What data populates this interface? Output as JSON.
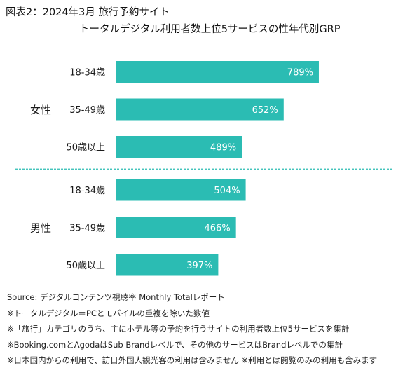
{
  "header": {
    "title_line1": "図表2：2024年3月 旅行予約サイト",
    "title_line2": "トータルデジタル利用者数上位5サービスの性年代別GRP"
  },
  "colors": {
    "bar": "#2bbcb3",
    "bar_label": "#ffffff",
    "divider": "#2bbcb3"
  },
  "chart_data": {
    "type": "bar",
    "orientation": "horizontal",
    "title": "トータルデジタル利用者数上位5サービスの性年代別GRP",
    "value_suffix": "%",
    "xlim": [
      0,
      800
    ],
    "groups": [
      {
        "label": "女性",
        "categories": [
          "18-34歳",
          "35-49歳",
          "50歳以上"
        ],
        "values": [
          789,
          652,
          489
        ]
      },
      {
        "label": "男性",
        "categories": [
          "18-34歳",
          "35-49歳",
          "50歳以上"
        ],
        "values": [
          504,
          466,
          397
        ]
      }
    ]
  },
  "notes": [
    "Source: デジタルコンテンツ視聴率 Monthly Totalレポート",
    "※トータルデジタル＝PCとモバイルの重複を除いた数値",
    "※「旅行」カテゴリのうち、主にホテル等の予約を行うサイトの利用者数上位5サービスを集計",
    "※Booking.comとAgodaはSub Brandレベルで、その他のサービスはBrandレベルでの集計",
    "※日本国内からの利用で、訪日外国人観光客の利用は含みません ※利用とは閲覧のみの利用も含みます"
  ]
}
